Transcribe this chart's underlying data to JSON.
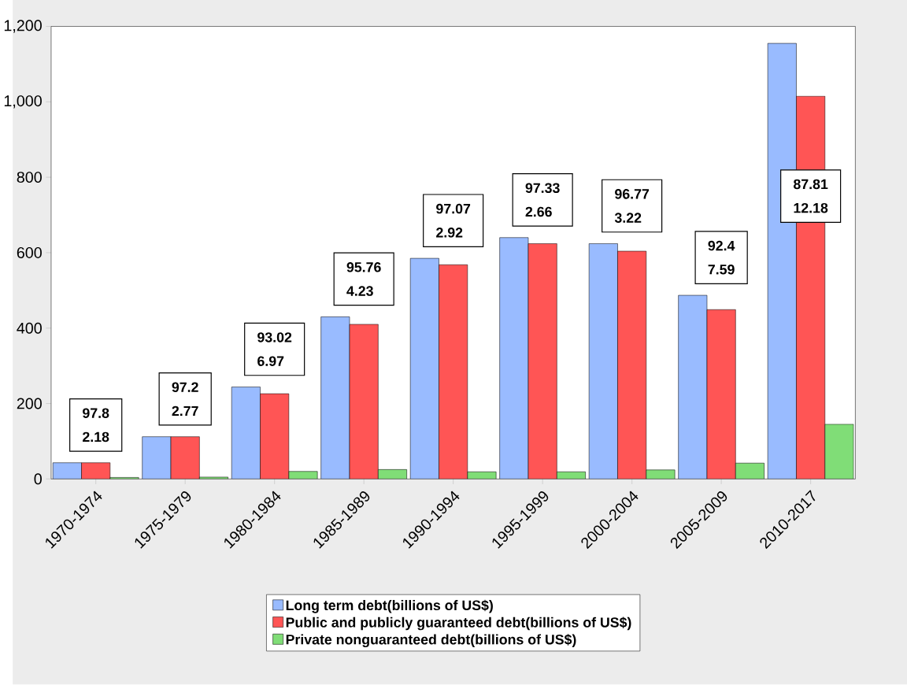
{
  "chart_data": {
    "type": "bar",
    "categories": [
      "1970-1974",
      "1975-1979",
      "1980-1984",
      "1985-1989",
      "1990-1994",
      "1995-1999",
      "2000-2004",
      "2005-2009",
      "2010-2017"
    ],
    "series": [
      {
        "name": "Long term debt(billions of US$)",
        "color": "#99bbff",
        "values": [
          43,
          112,
          244,
          430,
          585,
          640,
          624,
          487,
          1155
        ]
      },
      {
        "name": "Public and publicly guaranteed debt(billions of US$)",
        "color": "#ff5555",
        "values": [
          43,
          112,
          226,
          410,
          568,
          624,
          604,
          449,
          1015
        ]
      },
      {
        "name": "Private nonguaranteed debt(billions of US$)",
        "color": "#80dd77",
        "values": [
          4,
          5,
          20,
          25,
          19,
          19,
          24,
          42,
          145
        ]
      }
    ],
    "ylim": [
      0,
      1200
    ],
    "yticks": [
      0,
      200,
      400,
      600,
      800,
      {
        "value": 1000,
        "label": "1,000"
      },
      {
        "value": 1200,
        "label": "1,200"
      }
    ],
    "legend": "bottom",
    "annotations": [
      "97.8",
      "2.18",
      "97.2",
      "2.77",
      "93.02",
      "6.97",
      "95.76",
      "4.23",
      "97.07",
      "2.92",
      "97.33",
      "2.66",
      "96.77",
      "3.22",
      "92.4",
      "7.59",
      "87.81",
      "12.18"
    ]
  }
}
